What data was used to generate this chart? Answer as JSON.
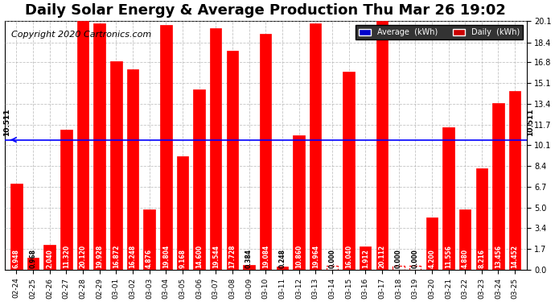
{
  "title": "Daily Solar Energy & Average Production Thu Mar 26 19:02",
  "copyright": "Copyright 2020 Cartronics.com",
  "average_value": 10.511,
  "average_label": "10.511",
  "categories": [
    "02-24",
    "02-25",
    "02-26",
    "02-27",
    "02-28",
    "02-29",
    "03-01",
    "03-02",
    "03-03",
    "03-04",
    "03-05",
    "03-06",
    "03-07",
    "03-08",
    "03-09",
    "03-10",
    "03-11",
    "03-12",
    "03-13",
    "03-14",
    "03-15",
    "03-16",
    "03-17",
    "03-18",
    "03-19",
    "03-20",
    "03-21",
    "03-22",
    "03-23",
    "03-24",
    "03-25"
  ],
  "values": [
    6.948,
    0.968,
    2.04,
    11.32,
    20.12,
    19.928,
    16.872,
    16.248,
    4.876,
    19.804,
    9.168,
    14.6,
    19.544,
    17.728,
    0.384,
    19.084,
    0.248,
    10.86,
    19.964,
    0.0,
    16.04,
    1.912,
    20.112,
    0.0,
    0.0,
    4.2,
    11.556,
    4.88,
    8.216,
    13.456,
    14.452
  ],
  "bar_color": "#FF0000",
  "average_line_color": "#0000FF",
  "ylim": [
    0,
    20.1
  ],
  "yticks": [
    0.0,
    1.7,
    3.4,
    5.0,
    6.7,
    8.4,
    10.1,
    11.7,
    13.4,
    15.1,
    16.8,
    18.4,
    20.1
  ],
  "background_color": "#FFFFFF",
  "grid_color": "#AAAAAA",
  "legend_avg_bg": "#0000CC",
  "legend_daily_bg": "#CC0000",
  "title_fontsize": 13,
  "copyright_fontsize": 8,
  "value_fontsize": 5.5,
  "tick_fontsize": 6.5,
  "ytick_fontsize": 7
}
